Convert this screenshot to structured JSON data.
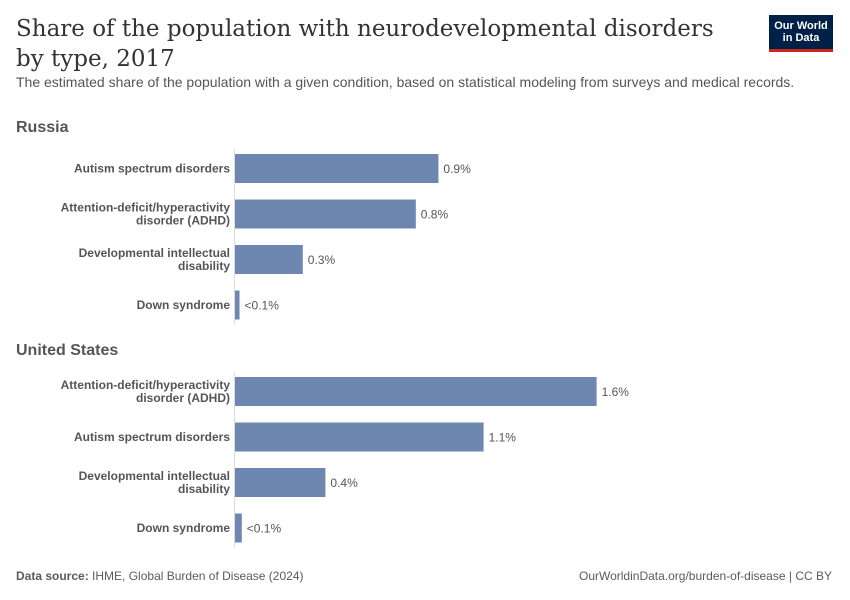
{
  "header": {
    "title": "Share of the population with neurodevelopmental disorders by type, 2017",
    "subtitle": "The estimated share of the population with a given condition, based on statistical modeling from surveys and medical records.",
    "logo_text": "Our World\nin Data"
  },
  "footer": {
    "source_label": "Data source:",
    "source_text": "IHME, Global Burden of Disease (2024)",
    "url_text": "OurWorldinData.org/burden-of-disease | CC BY"
  },
  "colors": {
    "bar": "#6d87b0",
    "logo_bg": "#002147",
    "logo_accent": "#ce261e"
  },
  "chart_data": [
    {
      "type": "bar",
      "orientation": "horizontal",
      "title": "Russia",
      "categories": [
        "Autism spectrum disorders",
        "Attention-deficit/hyperactivity disorder (ADHD)",
        "Developmental intellectual disability",
        "Down syndrome"
      ],
      "values": [
        0.9,
        0.8,
        0.3,
        0.02
      ],
      "labels": [
        "0.9%",
        "0.8%",
        "0.3%",
        "<0.1%"
      ],
      "unit": "%"
    },
    {
      "type": "bar",
      "orientation": "horizontal",
      "title": "United States",
      "categories": [
        "Attention-deficit/hyperactivity disorder (ADHD)",
        "Autism spectrum disorders",
        "Developmental intellectual disability",
        "Down syndrome"
      ],
      "values": [
        1.6,
        1.1,
        0.4,
        0.03
      ],
      "labels": [
        "1.6%",
        "1.1%",
        "0.4%",
        "<0.1%"
      ],
      "unit": "%"
    }
  ]
}
